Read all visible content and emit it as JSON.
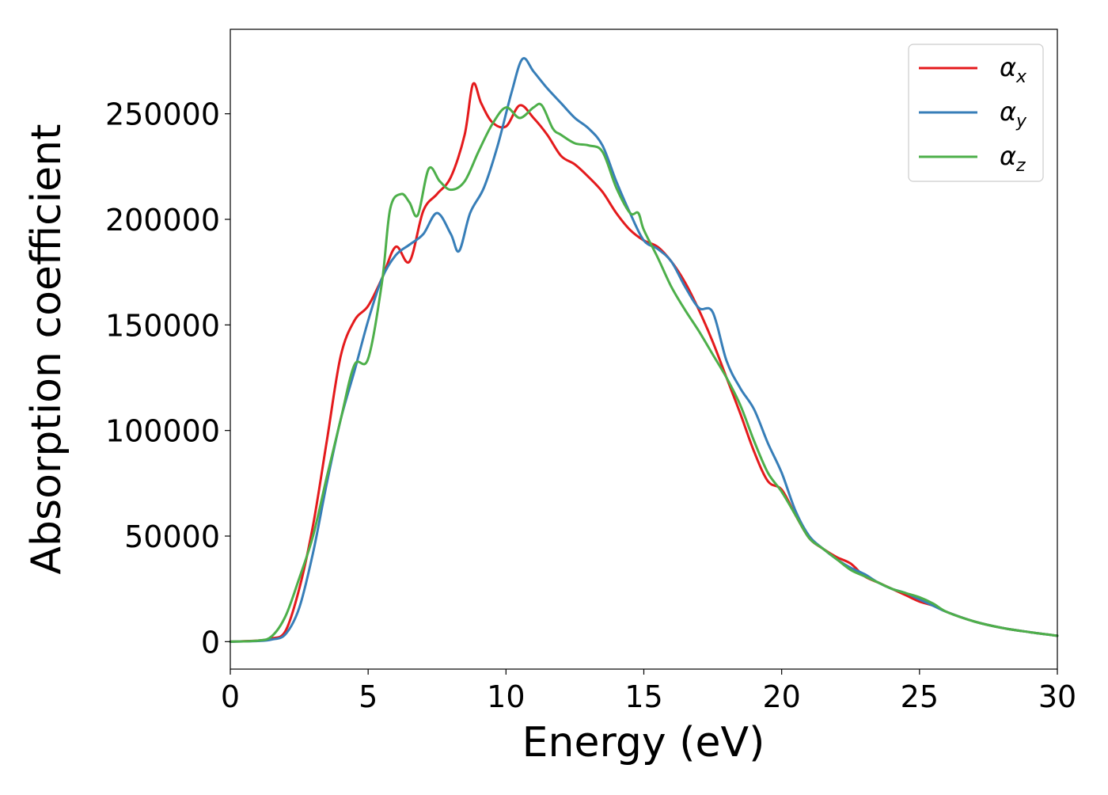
{
  "chart_data": {
    "type": "line",
    "title": "",
    "xlabel": "Energy (eV)",
    "ylabel": "Absorption coefficient",
    "xlim": [
      0,
      30
    ],
    "ylim": [
      -13000,
      290000
    ],
    "x_ticks": [
      0,
      5,
      10,
      15,
      20,
      25,
      30
    ],
    "x_tick_labels": [
      "0",
      "5",
      "10",
      "15",
      "20",
      "25",
      "30"
    ],
    "y_ticks": [
      0,
      50000,
      100000,
      150000,
      200000,
      250000
    ],
    "y_tick_labels": [
      "0",
      "50000",
      "100000",
      "150000",
      "200000",
      "250000"
    ],
    "grid": false,
    "legend": {
      "placement": "top-right"
    },
    "series": [
      {
        "name": "α",
        "subscript": "x",
        "color": "#e41a1c",
        "points": [
          [
            0,
            0
          ],
          [
            1,
            500
          ],
          [
            1.5,
            1500
          ],
          [
            2,
            5000
          ],
          [
            2.5,
            25000
          ],
          [
            3,
            55000
          ],
          [
            3.5,
            95000
          ],
          [
            4,
            135000
          ],
          [
            4.5,
            152000
          ],
          [
            5,
            159000
          ],
          [
            5.5,
            172000
          ],
          [
            6,
            187000
          ],
          [
            6.5,
            180000
          ],
          [
            7,
            204000
          ],
          [
            7.5,
            212000
          ],
          [
            8,
            220000
          ],
          [
            8.5,
            240000
          ],
          [
            8.8,
            264000
          ],
          [
            9.1,
            255000
          ],
          [
            9.5,
            246000
          ],
          [
            10,
            244000
          ],
          [
            10.5,
            254000
          ],
          [
            11,
            248000
          ],
          [
            11.5,
            240000
          ],
          [
            12,
            230000
          ],
          [
            12.5,
            226000
          ],
          [
            13,
            220000
          ],
          [
            13.5,
            213000
          ],
          [
            14,
            203000
          ],
          [
            14.5,
            195000
          ],
          [
            15,
            190000
          ],
          [
            15.5,
            187000
          ],
          [
            16,
            180000
          ],
          [
            16.5,
            170000
          ],
          [
            17,
            157000
          ],
          [
            17.5,
            142000
          ],
          [
            18,
            125000
          ],
          [
            18.5,
            108000
          ],
          [
            19,
            90000
          ],
          [
            19.5,
            76000
          ],
          [
            20,
            72000
          ],
          [
            20.5,
            60000
          ],
          [
            21,
            49000
          ],
          [
            21.5,
            44000
          ],
          [
            22,
            40000
          ],
          [
            22.5,
            37000
          ],
          [
            23,
            31000
          ],
          [
            23.5,
            28000
          ],
          [
            24,
            25000
          ],
          [
            24.5,
            22000
          ],
          [
            25,
            19000
          ],
          [
            25.5,
            17000
          ],
          [
            26,
            14000
          ],
          [
            27,
            9500
          ],
          [
            28,
            6500
          ],
          [
            29,
            4500
          ],
          [
            30,
            2800
          ]
        ]
      },
      {
        "name": "α",
        "subscript": "y",
        "color": "#377eb8",
        "points": [
          [
            0,
            0
          ],
          [
            1,
            300
          ],
          [
            1.5,
            1000
          ],
          [
            2,
            3500
          ],
          [
            2.5,
            16000
          ],
          [
            3,
            42000
          ],
          [
            3.5,
            75000
          ],
          [
            4,
            105000
          ],
          [
            4.5,
            128000
          ],
          [
            5,
            152000
          ],
          [
            5.5,
            172000
          ],
          [
            6,
            183000
          ],
          [
            6.5,
            188000
          ],
          [
            7,
            193000
          ],
          [
            7.5,
            203000
          ],
          [
            8,
            193000
          ],
          [
            8.3,
            185000
          ],
          [
            8.7,
            203000
          ],
          [
            9.2,
            215000
          ],
          [
            9.7,
            235000
          ],
          [
            10.2,
            260000
          ],
          [
            10.6,
            276000
          ],
          [
            11,
            270000
          ],
          [
            11.5,
            262000
          ],
          [
            12,
            255000
          ],
          [
            12.5,
            248000
          ],
          [
            13,
            243000
          ],
          [
            13.5,
            235000
          ],
          [
            14,
            218000
          ],
          [
            14.5,
            203000
          ],
          [
            15,
            190000
          ],
          [
            15.5,
            186000
          ],
          [
            16,
            180000
          ],
          [
            16.5,
            168000
          ],
          [
            17,
            158000
          ],
          [
            17.5,
            156000
          ],
          [
            18,
            133000
          ],
          [
            18.5,
            120000
          ],
          [
            19,
            110000
          ],
          [
            19.5,
            94000
          ],
          [
            20,
            80000
          ],
          [
            20.5,
            62000
          ],
          [
            21,
            50000
          ],
          [
            21.5,
            44000
          ],
          [
            22,
            39000
          ],
          [
            22.5,
            35000
          ],
          [
            23,
            32000
          ],
          [
            23.5,
            28000
          ],
          [
            24,
            25000
          ],
          [
            24.5,
            23000
          ],
          [
            25,
            20000
          ],
          [
            25.5,
            17000
          ],
          [
            26,
            14000
          ],
          [
            27,
            9500
          ],
          [
            28,
            6500
          ],
          [
            29,
            4500
          ],
          [
            30,
            2800
          ]
        ]
      },
      {
        "name": "α",
        "subscript": "z",
        "color": "#4daf4a",
        "points": [
          [
            0,
            0
          ],
          [
            1,
            500
          ],
          [
            1.5,
            2500
          ],
          [
            2,
            12000
          ],
          [
            2.5,
            30000
          ],
          [
            3,
            50000
          ],
          [
            3.5,
            78000
          ],
          [
            4,
            105000
          ],
          [
            4.5,
            131000
          ],
          [
            5,
            134000
          ],
          [
            5.5,
            170000
          ],
          [
            5.8,
            205000
          ],
          [
            6.2,
            212000
          ],
          [
            6.5,
            208000
          ],
          [
            6.8,
            202000
          ],
          [
            7.2,
            224000
          ],
          [
            7.6,
            218000
          ],
          [
            8,
            214000
          ],
          [
            8.5,
            218000
          ],
          [
            9,
            232000
          ],
          [
            9.5,
            245000
          ],
          [
            10,
            253000
          ],
          [
            10.5,
            248000
          ],
          [
            11,
            253000
          ],
          [
            11.3,
            254000
          ],
          [
            11.7,
            243000
          ],
          [
            12,
            240000
          ],
          [
            12.5,
            236000
          ],
          [
            13,
            235000
          ],
          [
            13.5,
            232000
          ],
          [
            14,
            215000
          ],
          [
            14.5,
            203000
          ],
          [
            14.8,
            203000
          ],
          [
            15,
            195000
          ],
          [
            15.5,
            182000
          ],
          [
            16,
            168000
          ],
          [
            16.5,
            157000
          ],
          [
            17,
            147000
          ],
          [
            17.5,
            136000
          ],
          [
            18,
            125000
          ],
          [
            18.5,
            112000
          ],
          [
            19,
            95000
          ],
          [
            19.5,
            80000
          ],
          [
            20,
            71000
          ],
          [
            20.5,
            60000
          ],
          [
            21,
            49000
          ],
          [
            21.5,
            44000
          ],
          [
            22,
            39000
          ],
          [
            22.5,
            34000
          ],
          [
            23,
            31000
          ],
          [
            23.5,
            28000
          ],
          [
            24,
            25000
          ],
          [
            24.5,
            23000
          ],
          [
            25,
            21000
          ],
          [
            25.5,
            18000
          ],
          [
            26,
            14000
          ],
          [
            27,
            9500
          ],
          [
            28,
            6500
          ],
          [
            29,
            4500
          ],
          [
            30,
            2800
          ]
        ]
      }
    ]
  }
}
